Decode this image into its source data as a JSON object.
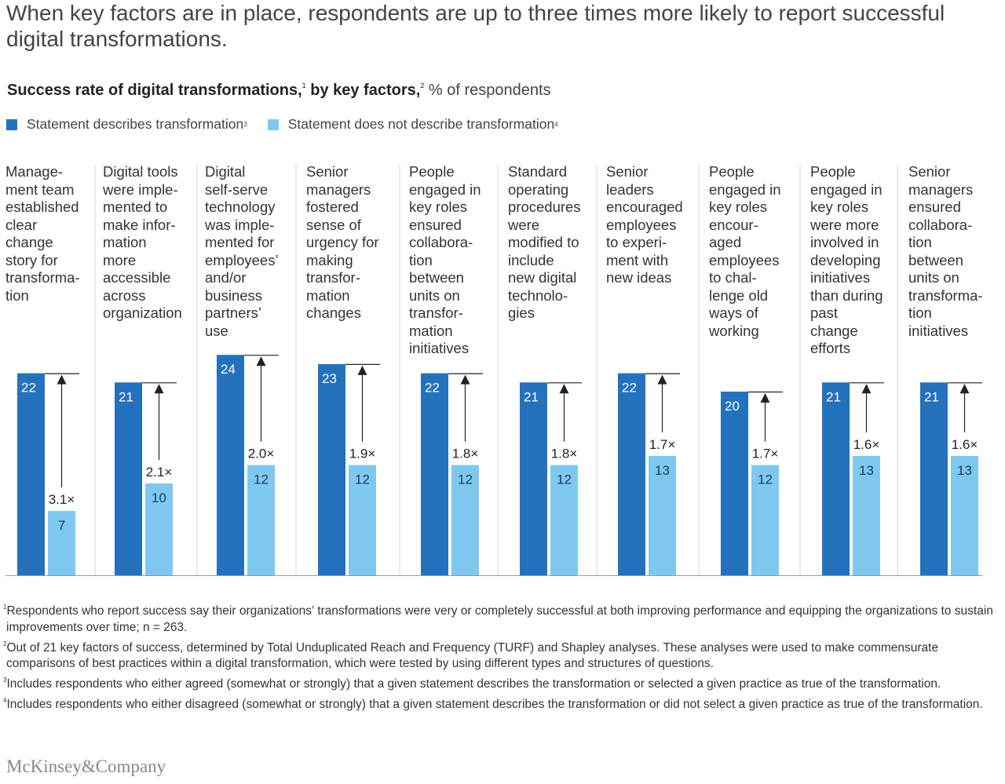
{
  "title": "When key factors are in place, respondents are up to three times more likely to report successful digital transformations.",
  "subtitle": {
    "bold_1": "Success rate of digital transformations,",
    "sup_1": "1",
    "bold_2": " by key factors,",
    "sup_2": "2",
    "rest": " % of respondents"
  },
  "legend": [
    {
      "label": "Statement describes transformation",
      "sup": "3",
      "color": "#2472BD"
    },
    {
      "label": "Statement does not describe transformation",
      "sup": "4",
      "color": "#7EC8EF"
    }
  ],
  "chart_data": {
    "type": "bar",
    "title": "Success rate of digital transformations, by key factors, % of respondents",
    "ylabel": "% of respondents",
    "ylim": [
      0,
      24
    ],
    "categories": [
      "Manage-ment team established clear change story for transforma-tion",
      "Digital tools were imple-mented to make infor-mation more accessible across organization",
      "Digital self-serve technology was imple-mented for employees' and/or business partners' use",
      "Senior managers fostered sense of urgency for making transfor-mation changes",
      "People engaged in key roles ensured collabora-tion between units on transfor-mation initiatives",
      "Standard operating procedures were modified to include new digital technolo-gies",
      "Senior leaders encouraged employees to experi-ment with new ideas",
      "People engaged in key roles encour-aged employees to chal-lenge old ways of working",
      "People engaged in key roles were more involved in developing initiatives than during past change efforts",
      "Senior managers ensured collabora-tion between units on transforma-tion initiatives"
    ],
    "category_lines": [
      [
        "Manage-",
        "ment team",
        "established",
        "clear",
        "change",
        "story for",
        "transforma-",
        "tion"
      ],
      [
        "Digital tools",
        "were imple-",
        "mented to",
        "make infor-",
        "mation",
        "more",
        "accessible",
        "across",
        "organization"
      ],
      [
        "Digital",
        "self-serve",
        "technology",
        "was imple-",
        "mented for",
        "employees’",
        "and/or",
        "business",
        "partners’",
        "use"
      ],
      [
        "Senior",
        "managers",
        "fostered",
        "sense of",
        "urgency for",
        "making",
        "transfor-",
        "mation",
        "changes"
      ],
      [
        "People",
        "engaged in",
        "key roles",
        "ensured",
        "collabora-",
        "tion",
        "between",
        "units on",
        "transfor-",
        "mation",
        "initiatives"
      ],
      [
        "Standard",
        "operating",
        "procedures",
        "were",
        "modified to",
        "include",
        "new digital",
        "technolo-",
        "gies"
      ],
      [
        "Senior",
        "leaders",
        "encouraged",
        "employees",
        "to experi-",
        "ment with",
        "new ideas"
      ],
      [
        "People",
        "engaged in",
        "key roles",
        "encour-",
        "aged",
        "employees",
        "to chal-",
        "lenge old",
        "ways of",
        "working"
      ],
      [
        "People",
        "engaged in",
        "key roles",
        "were more",
        "involved in",
        "developing",
        "initiatives",
        "than during",
        "past",
        "change",
        "efforts"
      ],
      [
        "Senior",
        "managers",
        "ensured",
        "collabora-",
        "tion",
        "between",
        "units on",
        "transforma-",
        "tion",
        "initiatives"
      ]
    ],
    "series": [
      {
        "name": "Statement describes transformation",
        "values": [
          22,
          21,
          24,
          23,
          22,
          21,
          22,
          20,
          21,
          21
        ]
      },
      {
        "name": "Statement does not describe transformation",
        "values": [
          7,
          10,
          12,
          12,
          12,
          12,
          13,
          12,
          13,
          13
        ]
      }
    ],
    "multipliers": [
      "3.1×",
      "2.1×",
      "2.0×",
      "1.9×",
      "1.8×",
      "1.8×",
      "1.7×",
      "1.7×",
      "1.6×",
      "1.6×"
    ]
  },
  "colors": {
    "dark_blue": "#2472BD",
    "light_blue": "#7EC8EF",
    "divider": "#d4d4d4",
    "arrow": "#222222"
  },
  "footnotes": [
    {
      "sup": "1",
      "text": "Respondents who report success say their organizations’ transformations were very or completely successful at both improving performance and equipping the organizations to sustain improvements over time; n = 263."
    },
    {
      "sup": "2",
      "text": "Out of 21 key factors of success, determined by Total Unduplicated Reach and Frequency (TURF) and Shapley analyses. These analyses were used to make commensurate comparisons of best practices within a digital transformation, which were tested by using different types and structures of questions."
    },
    {
      "sup": "3",
      "text": "Includes respondents who either agreed (somewhat or strongly) that a given statement describes the transformation or selected a given practice as true of the transformation."
    },
    {
      "sup": "4",
      "text": "Includes respondents who either disagreed (somewhat or strongly) that a given statement describes the transformation or did not select a given practice as true of the transformation."
    }
  ],
  "logo": "McKinsey&Company"
}
